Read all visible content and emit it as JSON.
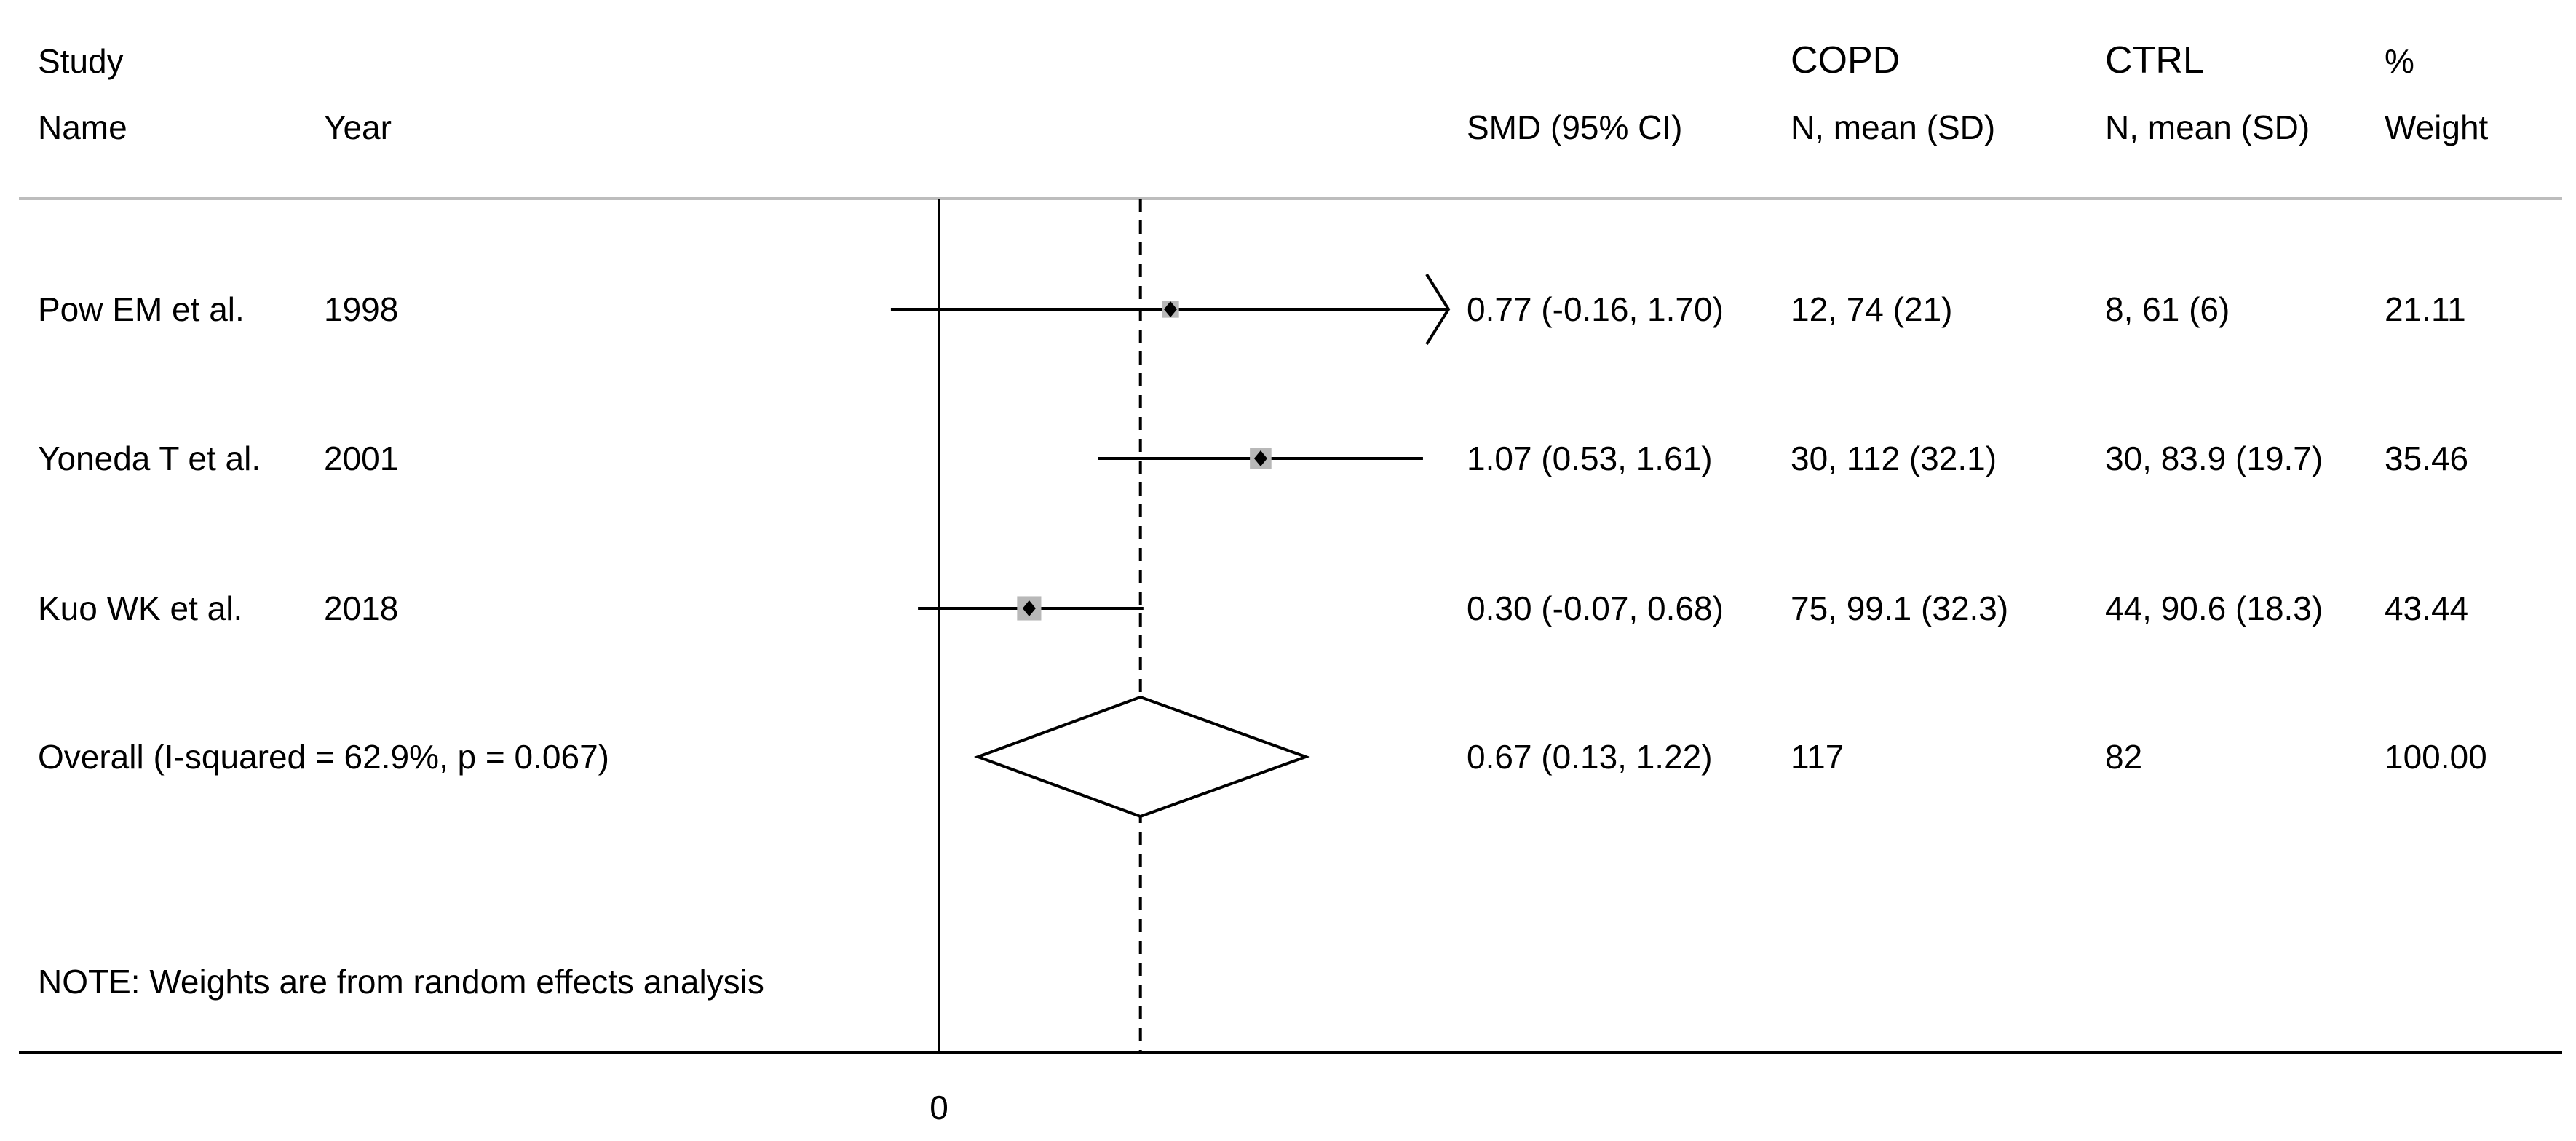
{
  "chart_data": {
    "type": "forest",
    "headers": {
      "study_top": "Study",
      "study_bottom": "Name",
      "year": "Year",
      "effect": "SMD (95% CI)",
      "copd_top": "COPD",
      "copd_bottom": "N, mean (SD)",
      "ctrl_top": "CTRL",
      "ctrl_bottom": "N, mean (SD)",
      "weight_top": "%",
      "weight_bottom": "Weight"
    },
    "studies": [
      {
        "name": "Pow EM et al.",
        "year": "1998",
        "smd": 0.77,
        "ci_low": -0.16,
        "ci_high": 1.7,
        "ci_text": "0.77 (-0.16, 1.70)",
        "copd": "12, 74 (21)",
        "ctrl": "8, 61 (6)",
        "weight": 21.11,
        "weight_text": "21.11"
      },
      {
        "name": "Yoneda T et al.",
        "year": "2001",
        "smd": 1.07,
        "ci_low": 0.53,
        "ci_high": 1.61,
        "ci_text": "1.07 (0.53, 1.61)",
        "copd": "30, 112 (32.1)",
        "ctrl": "30, 83.9 (19.7)",
        "weight": 35.46,
        "weight_text": "35.46"
      },
      {
        "name": "Kuo WK et al.",
        "year": "2018",
        "smd": 0.3,
        "ci_low": -0.07,
        "ci_high": 0.68,
        "ci_text": "0.30 (-0.07, 0.68)",
        "copd": "75, 99.1 (32.3)",
        "ctrl": "44, 90.6 (18.3)",
        "weight": 43.44,
        "weight_text": "43.44"
      }
    ],
    "overall": {
      "label": "Overall  (I-squared = 62.9%, p = 0.067)",
      "smd": 0.67,
      "ci_low": 0.13,
      "ci_high": 1.22,
      "ci_text": "0.67 (0.13, 1.22)",
      "copd": "117",
      "ctrl": "82",
      "weight_text": "100.00"
    },
    "note": "NOTE: Weights are from random effects analysis",
    "x_ticks": [
      "0"
    ],
    "xlim": [
      -0.16,
      1.7
    ],
    "null_line": 0
  }
}
